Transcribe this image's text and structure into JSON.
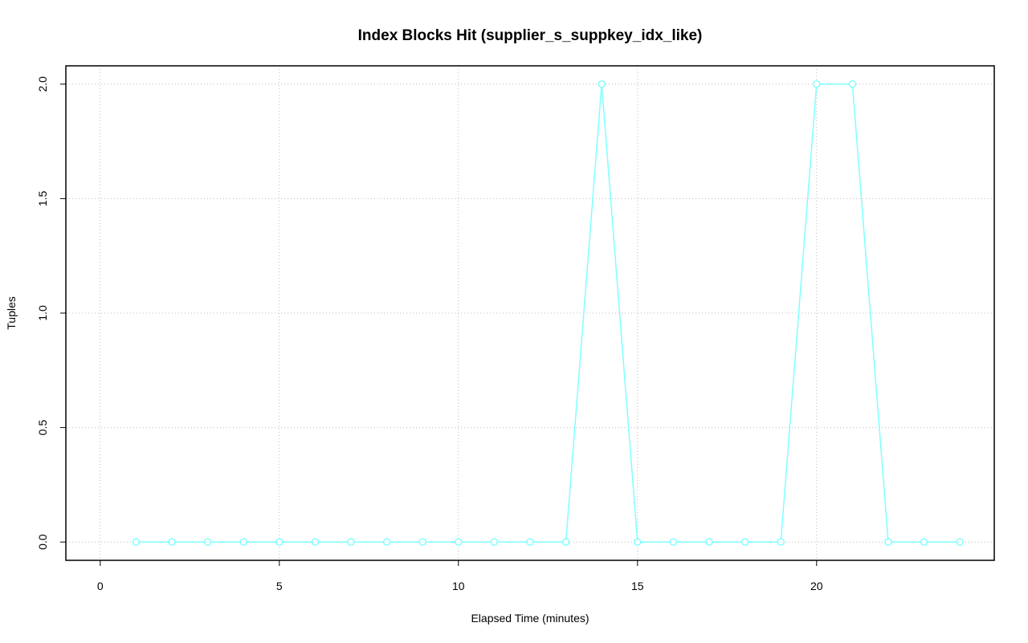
{
  "chart_data": {
    "type": "line",
    "title": "Index Blocks Hit (supplier_s_suppkey_idx_like)",
    "x_label": "Elapsed Time (minutes)",
    "y_label": "Tuples",
    "x": [
      1,
      2,
      3,
      4,
      5,
      6,
      7,
      8,
      9,
      10,
      11,
      12,
      13,
      14,
      15,
      16,
      17,
      18,
      19,
      20,
      21,
      22,
      23,
      24
    ],
    "values": [
      0,
      0,
      0,
      0,
      0,
      0,
      0,
      0,
      0,
      0,
      0,
      0,
      0,
      2,
      0,
      0,
      0,
      0,
      0,
      2,
      2,
      0,
      0,
      0
    ],
    "color": "#7fffff",
    "xlim": [
      -0.96,
      24.96
    ],
    "ylim": [
      -0.08,
      2.08
    ],
    "xticks": [
      0,
      5,
      10,
      15,
      20
    ],
    "yticks": [
      {
        "value": 0,
        "label": "0.0"
      },
      {
        "value": 0.5,
        "label": "0.5"
      },
      {
        "value": 1,
        "label": "1.0"
      },
      {
        "value": 1.5,
        "label": "1.5"
      },
      {
        "value": 2,
        "label": "2.0"
      }
    ],
    "grid": true
  }
}
